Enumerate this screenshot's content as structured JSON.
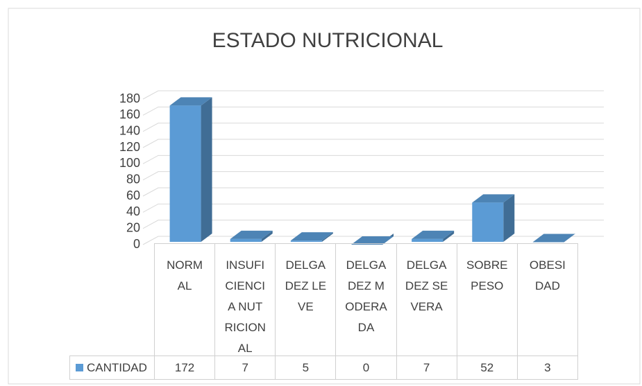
{
  "chart_data": {
    "type": "bar3d",
    "title": "ESTADO NUTRICIONAL",
    "categories": [
      "NORMAL",
      "INSUFICIENCIA NUTRICIONAL",
      "DELGADEZ LEVE",
      "DELGADEZ MODERADA",
      "DELGADEZ SEVERA",
      "SOBREPESO",
      "OBESIDAD"
    ],
    "series": [
      {
        "name": "CANTIDAD",
        "color": "#5b9bd5",
        "values": [
          172,
          7,
          5,
          0,
          7,
          52,
          3
        ]
      }
    ],
    "ylim": [
      0,
      180
    ],
    "yticks": [
      0,
      20,
      40,
      60,
      80,
      100,
      120,
      140,
      160,
      180
    ],
    "grid": true,
    "data_table": true
  }
}
